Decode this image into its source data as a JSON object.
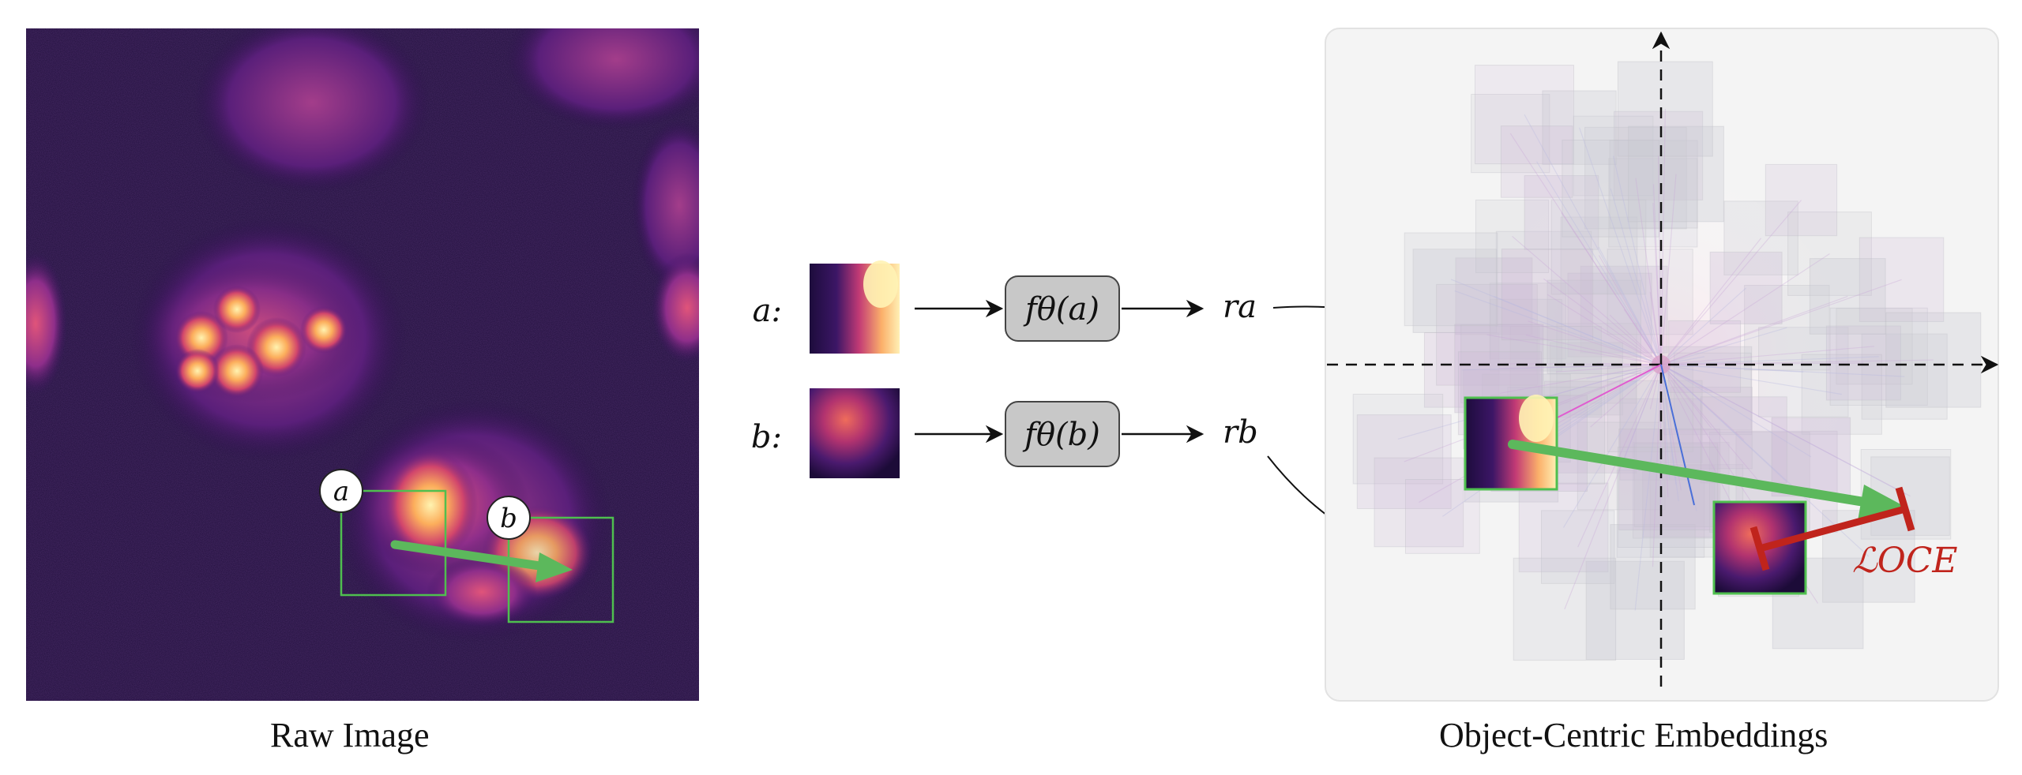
{
  "captions": {
    "left": "Raw Image",
    "right": "Object-Centric Embeddings"
  },
  "labels": {
    "crop_a": "a",
    "crop_b": "b"
  },
  "pipeline": {
    "row_a": {
      "input_label": "a:",
      "function_label": "fθ(a)",
      "output_label": "ra"
    },
    "row_b": {
      "input_label": "b:",
      "function_label": "fθ(b)",
      "output_label": "rb"
    }
  },
  "loss": {
    "label": "ℒOCE"
  },
  "colors": {
    "green_arrow": "#5cb85c",
    "box_outline": "#4fbf4f",
    "loss_bar": "#c0241c",
    "function_box_fill": "#c8c8c8",
    "panel_bg": "#f4f4f4"
  }
}
